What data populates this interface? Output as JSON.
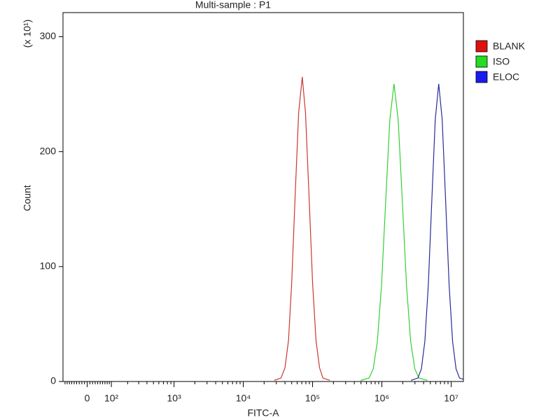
{
  "chart_data": {
    "type": "line",
    "title": "Multi-sample : P1",
    "x_label": "FITC-A",
    "y_label": "Count",
    "y_scale_label": "(x 10¹)",
    "xscale": "biexponential",
    "xlim": [
      -100,
      15000000
    ],
    "ylim": [
      0,
      321
    ],
    "xticks": [
      0,
      {
        "value": 100,
        "label": "10²"
      },
      {
        "value": 1000,
        "label": "10³"
      },
      {
        "value": 10000,
        "label": "10⁴"
      },
      {
        "value": 100000,
        "label": "10⁵"
      },
      {
        "value": 1000000,
        "label": "10⁶"
      },
      {
        "value": 10000000,
        "label": "10⁷"
      }
    ],
    "xminor_ticks": [
      -90,
      -80,
      -70,
      -60,
      -50,
      -40,
      -30,
      -20,
      -10,
      10,
      20,
      30,
      40,
      50,
      60,
      70,
      80,
      90,
      200,
      300,
      400,
      500,
      600,
      700,
      800,
      900,
      2000,
      3000,
      4000,
      5000,
      6000,
      7000,
      8000,
      9000,
      20000,
      30000,
      40000,
      50000,
      60000,
      70000,
      80000,
      90000,
      200000,
      300000,
      400000,
      500000,
      600000,
      700000,
      800000,
      900000,
      2000000,
      3000000,
      4000000,
      5000000,
      6000000,
      7000000,
      8000000,
      9000000
    ],
    "yticks": [
      0,
      100,
      200,
      300
    ],
    "legend": "right",
    "series": [
      {
        "name": "BLANK",
        "color": "#c8382f",
        "swatch": "#e01010",
        "x": [
          28000,
          35000,
          40000,
          45000,
          50000,
          56000,
          63000,
          71000,
          79000,
          89000,
          100000,
          112000,
          126000,
          141000,
          178000
        ],
        "values": [
          1,
          3,
          12,
          36,
          86,
          161,
          234,
          265,
          234,
          161,
          86,
          36,
          12,
          3,
          1
        ]
      },
      {
        "name": "ISO",
        "color": "#33d033",
        "swatch": "#22dd22",
        "x": [
          495000,
          653000,
          750000,
          861000,
          989000,
          1135000,
          1303000,
          1496000,
          1718000,
          1972000,
          2265000,
          2600000,
          2985000,
          3428000,
          4519000
        ],
        "values": [
          1,
          3,
          11,
          35,
          84,
          157,
          228,
          259,
          228,
          157,
          84,
          35,
          11,
          3,
          1
        ]
      },
      {
        "name": "ELOC",
        "color": "#2a2a9a",
        "swatch": "#1a1aee",
        "x": [
          2630000,
          3311000,
          3715000,
          4169000,
          4677000,
          5248000,
          5888000,
          6607000,
          7413000,
          8318000,
          9333000,
          10470000,
          11750000,
          13180000,
          16600000
        ],
        "values": [
          1,
          3,
          11,
          35,
          84,
          157,
          228,
          259,
          228,
          157,
          84,
          35,
          11,
          3,
          1
        ]
      }
    ]
  }
}
